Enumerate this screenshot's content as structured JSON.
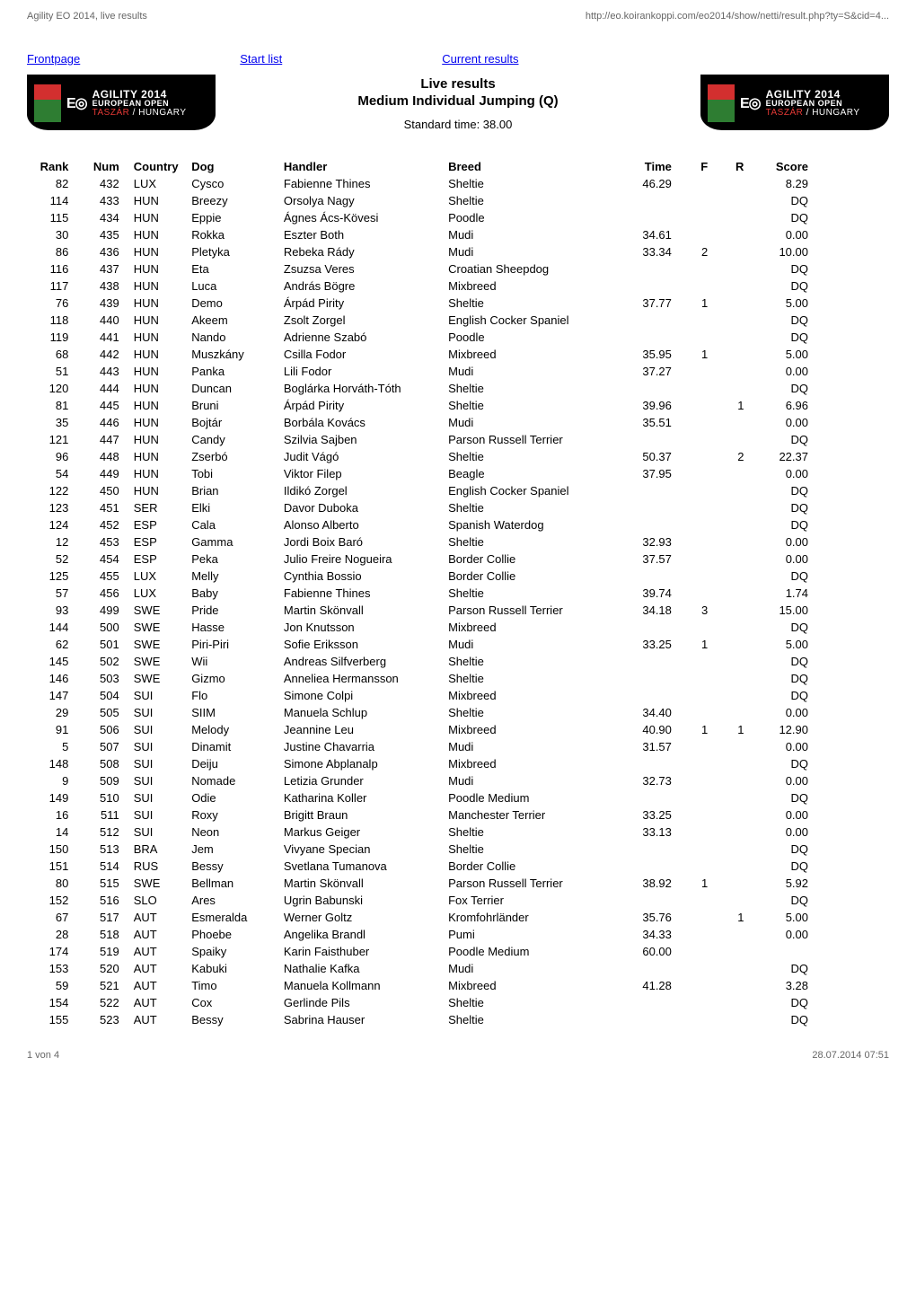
{
  "page_header": {
    "left": "Agility EO 2014, live results",
    "right": "http://eo.koirankoppi.com/eo2014/show/netti/result.php?ty=S&cid=4..."
  },
  "links": {
    "front": "Frontpage",
    "start": "Start list",
    "current": "Current results"
  },
  "logo": {
    "eo": "E",
    "ring": "◎",
    "agility": "AGILITY 2014",
    "euro": "EUROPEAN OPEN",
    "loc_red": "TASZÁR",
    "loc_white": " / HUNGARY"
  },
  "center": {
    "title": "Live results",
    "sub": "Medium Individual Jumping (Q)",
    "std": "Standard time: 38.00"
  },
  "table": {
    "headers": {
      "rank": "Rank",
      "num": "Num",
      "country": "Country",
      "dog": "Dog",
      "handler": "Handler",
      "breed": "Breed",
      "time": "Time",
      "f": "F",
      "r": "R",
      "score": "Score"
    },
    "rows": [
      {
        "rank": "82",
        "num": "432",
        "country": "LUX",
        "dog": "Cysco",
        "handler": "Fabienne Thines",
        "breed": "Sheltie",
        "time": "46.29",
        "f": "",
        "r": "",
        "score": "8.29"
      },
      {
        "rank": "114",
        "num": "433",
        "country": "HUN",
        "dog": "Breezy",
        "handler": "Orsolya Nagy",
        "breed": "Sheltie",
        "time": "",
        "f": "",
        "r": "",
        "score": "DQ"
      },
      {
        "rank": "115",
        "num": "434",
        "country": "HUN",
        "dog": "Eppie",
        "handler": "Ágnes Ács-Kövesi",
        "breed": "Poodle",
        "time": "",
        "f": "",
        "r": "",
        "score": "DQ"
      },
      {
        "rank": "30",
        "num": "435",
        "country": "HUN",
        "dog": "Rokka",
        "handler": "Eszter Both",
        "breed": "Mudi",
        "time": "34.61",
        "f": "",
        "r": "",
        "score": "0.00"
      },
      {
        "rank": "86",
        "num": "436",
        "country": "HUN",
        "dog": "Pletyka",
        "handler": "Rebeka Rády",
        "breed": "Mudi",
        "time": "33.34",
        "f": "2",
        "r": "",
        "score": "10.00"
      },
      {
        "rank": "116",
        "num": "437",
        "country": "HUN",
        "dog": "Eta",
        "handler": "Zsuzsa Veres",
        "breed": "Croatian Sheepdog",
        "time": "",
        "f": "",
        "r": "",
        "score": "DQ"
      },
      {
        "rank": "117",
        "num": "438",
        "country": "HUN",
        "dog": "Luca",
        "handler": "András Bögre",
        "breed": "Mixbreed",
        "time": "",
        "f": "",
        "r": "",
        "score": "DQ"
      },
      {
        "rank": "76",
        "num": "439",
        "country": "HUN",
        "dog": "Demo",
        "handler": "Árpád Pirity",
        "breed": "Sheltie",
        "time": "37.77",
        "f": "1",
        "r": "",
        "score": "5.00"
      },
      {
        "rank": "118",
        "num": "440",
        "country": "HUN",
        "dog": "Akeem",
        "handler": "Zsolt Zorgel",
        "breed": "English Cocker Spaniel",
        "time": "",
        "f": "",
        "r": "",
        "score": "DQ"
      },
      {
        "rank": "119",
        "num": "441",
        "country": "HUN",
        "dog": "Nando",
        "handler": "Adrienne Szabó",
        "breed": "Poodle",
        "time": "",
        "f": "",
        "r": "",
        "score": "DQ"
      },
      {
        "rank": "68",
        "num": "442",
        "country": "HUN",
        "dog": "Muszkány",
        "handler": "Csilla Fodor",
        "breed": "Mixbreed",
        "time": "35.95",
        "f": "1",
        "r": "",
        "score": "5.00"
      },
      {
        "rank": "51",
        "num": "443",
        "country": "HUN",
        "dog": "Panka",
        "handler": "Lili Fodor",
        "breed": "Mudi",
        "time": "37.27",
        "f": "",
        "r": "",
        "score": "0.00"
      },
      {
        "rank": "120",
        "num": "444",
        "country": "HUN",
        "dog": "Duncan",
        "handler": "Boglárka Horváth-Tóth",
        "breed": "Sheltie",
        "time": "",
        "f": "",
        "r": "",
        "score": "DQ"
      },
      {
        "rank": "81",
        "num": "445",
        "country": "HUN",
        "dog": "Bruni",
        "handler": "Árpád Pirity",
        "breed": "Sheltie",
        "time": "39.96",
        "f": "",
        "r": "1",
        "score": "6.96"
      },
      {
        "rank": "35",
        "num": "446",
        "country": "HUN",
        "dog": "Bojtár",
        "handler": "Borbála Kovács",
        "breed": "Mudi",
        "time": "35.51",
        "f": "",
        "r": "",
        "score": "0.00"
      },
      {
        "rank": "121",
        "num": "447",
        "country": "HUN",
        "dog": "Candy",
        "handler": "Szilvia Sajben",
        "breed": "Parson Russell Terrier",
        "time": "",
        "f": "",
        "r": "",
        "score": "DQ"
      },
      {
        "rank": "96",
        "num": "448",
        "country": "HUN",
        "dog": "Zserbó",
        "handler": "Judit Vágó",
        "breed": "Sheltie",
        "time": "50.37",
        "f": "",
        "r": "2",
        "score": "22.37"
      },
      {
        "rank": "54",
        "num": "449",
        "country": "HUN",
        "dog": "Tobi",
        "handler": "Viktor Filep",
        "breed": "Beagle",
        "time": "37.95",
        "f": "",
        "r": "",
        "score": "0.00"
      },
      {
        "rank": "122",
        "num": "450",
        "country": "HUN",
        "dog": "Brian",
        "handler": "Ildikó Zorgel",
        "breed": "English Cocker Spaniel",
        "time": "",
        "f": "",
        "r": "",
        "score": "DQ"
      },
      {
        "rank": "123",
        "num": "451",
        "country": "SER",
        "dog": "Elki",
        "handler": "Davor Duboka",
        "breed": "Sheltie",
        "time": "",
        "f": "",
        "r": "",
        "score": "DQ"
      },
      {
        "rank": "124",
        "num": "452",
        "country": "ESP",
        "dog": "Cala",
        "handler": "Alonso  Alberto",
        "breed": "Spanish Waterdog",
        "time": "",
        "f": "",
        "r": "",
        "score": "DQ"
      },
      {
        "rank": "12",
        "num": "453",
        "country": "ESP",
        "dog": "Gamma",
        "handler": "Jordi Boix Baró",
        "breed": "Sheltie",
        "time": "32.93",
        "f": "",
        "r": "",
        "score": "0.00"
      },
      {
        "rank": "52",
        "num": "454",
        "country": "ESP",
        "dog": "Peka",
        "handler": "Julio Freire Nogueira",
        "breed": "Border Collie",
        "time": "37.57",
        "f": "",
        "r": "",
        "score": "0.00"
      },
      {
        "rank": "125",
        "num": "455",
        "country": "LUX",
        "dog": "Melly",
        "handler": "Cynthia Bossio",
        "breed": "Border Collie",
        "time": "",
        "f": "",
        "r": "",
        "score": "DQ"
      },
      {
        "rank": "57",
        "num": "456",
        "country": "LUX",
        "dog": "Baby",
        "handler": "Fabienne Thines",
        "breed": "Sheltie",
        "time": "39.74",
        "f": "",
        "r": "",
        "score": "1.74"
      },
      {
        "rank": "93",
        "num": "499",
        "country": "SWE",
        "dog": "Pride",
        "handler": "Martin Skönvall",
        "breed": "Parson Russell Terrier",
        "time": "34.18",
        "f": "3",
        "r": "",
        "score": "15.00"
      },
      {
        "rank": "144",
        "num": "500",
        "country": "SWE",
        "dog": "Hasse",
        "handler": "Jon Knutsson",
        "breed": "Mixbreed",
        "time": "",
        "f": "",
        "r": "",
        "score": "DQ"
      },
      {
        "rank": "62",
        "num": "501",
        "country": "SWE",
        "dog": "Piri-Piri",
        "handler": "Sofie Eriksson",
        "breed": "Mudi",
        "time": "33.25",
        "f": "1",
        "r": "",
        "score": "5.00"
      },
      {
        "rank": "145",
        "num": "502",
        "country": "SWE",
        "dog": "Wii",
        "handler": "Andreas Silfverberg",
        "breed": "Sheltie",
        "time": "",
        "f": "",
        "r": "",
        "score": "DQ"
      },
      {
        "rank": "146",
        "num": "503",
        "country": "SWE",
        "dog": "Gizmo",
        "handler": "Anneliea Hermansson",
        "breed": "Sheltie",
        "time": "",
        "f": "",
        "r": "",
        "score": "DQ"
      },
      {
        "rank": "147",
        "num": "504",
        "country": "SUI",
        "dog": "Flo",
        "handler": "Simone Colpi",
        "breed": "Mixbreed",
        "time": "",
        "f": "",
        "r": "",
        "score": "DQ"
      },
      {
        "rank": "29",
        "num": "505",
        "country": "SUI",
        "dog": "SIIM",
        "handler": "Manuela Schlup",
        "breed": "Sheltie",
        "time": "34.40",
        "f": "",
        "r": "",
        "score": "0.00"
      },
      {
        "rank": "91",
        "num": "506",
        "country": "SUI",
        "dog": "Melody",
        "handler": "Jeannine Leu",
        "breed": "Mixbreed",
        "time": "40.90",
        "f": "1",
        "r": "1",
        "score": "12.90"
      },
      {
        "rank": "5",
        "num": "507",
        "country": "SUI",
        "dog": "Dinamit",
        "handler": "Justine Chavarria",
        "breed": "Mudi",
        "time": "31.57",
        "f": "",
        "r": "",
        "score": "0.00"
      },
      {
        "rank": "148",
        "num": "508",
        "country": "SUI",
        "dog": "Deiju",
        "handler": "Simone Abplanalp",
        "breed": "Mixbreed",
        "time": "",
        "f": "",
        "r": "",
        "score": "DQ"
      },
      {
        "rank": "9",
        "num": "509",
        "country": "SUI",
        "dog": "Nomade",
        "handler": "Letizia Grunder",
        "breed": "Mudi",
        "time": "32.73",
        "f": "",
        "r": "",
        "score": "0.00"
      },
      {
        "rank": "149",
        "num": "510",
        "country": "SUI",
        "dog": "Odie",
        "handler": "Katharina Koller",
        "breed": "Poodle Medium",
        "time": "",
        "f": "",
        "r": "",
        "score": "DQ"
      },
      {
        "rank": "16",
        "num": "511",
        "country": "SUI",
        "dog": "Roxy",
        "handler": "Brigitt Braun",
        "breed": "Manchester Terrier",
        "time": "33.25",
        "f": "",
        "r": "",
        "score": "0.00"
      },
      {
        "rank": "14",
        "num": "512",
        "country": "SUI",
        "dog": "Neon",
        "handler": "Markus Geiger",
        "breed": "Sheltie",
        "time": "33.13",
        "f": "",
        "r": "",
        "score": "0.00"
      },
      {
        "rank": "150",
        "num": "513",
        "country": "BRA",
        "dog": "Jem",
        "handler": "Vivyane Specian",
        "breed": "Sheltie",
        "time": "",
        "f": "",
        "r": "",
        "score": "DQ"
      },
      {
        "rank": "151",
        "num": "514",
        "country": "RUS",
        "dog": "Bessy",
        "handler": "Svetlana Tumanova",
        "breed": "Border Collie",
        "time": "",
        "f": "",
        "r": "",
        "score": "DQ"
      },
      {
        "rank": "80",
        "num": "515",
        "country": "SWE",
        "dog": "Bellman",
        "handler": "Martin Skönvall",
        "breed": "Parson Russell Terrier",
        "time": "38.92",
        "f": "1",
        "r": "",
        "score": "5.92"
      },
      {
        "rank": "152",
        "num": "516",
        "country": "SLO",
        "dog": "Ares",
        "handler": "Ugrin Babunski",
        "breed": "Fox Terrier",
        "time": "",
        "f": "",
        "r": "",
        "score": "DQ"
      },
      {
        "rank": "67",
        "num": "517",
        "country": "AUT",
        "dog": "Esmeralda",
        "handler": "Werner Goltz",
        "breed": "Kromfohrländer",
        "time": "35.76",
        "f": "",
        "r": "1",
        "score": "5.00"
      },
      {
        "rank": "28",
        "num": "518",
        "country": "AUT",
        "dog": "Phoebe",
        "handler": "Angelika Brandl",
        "breed": "Pumi",
        "time": "34.33",
        "f": "",
        "r": "",
        "score": "0.00"
      },
      {
        "rank": "174",
        "num": "519",
        "country": "AUT",
        "dog": "Spaiky",
        "handler": "Karin Faisthuber",
        "breed": "Poodle Medium",
        "time": "60.00",
        "f": "",
        "r": "",
        "score": ""
      },
      {
        "rank": "153",
        "num": "520",
        "country": "AUT",
        "dog": "Kabuki",
        "handler": "Nathalie Kafka",
        "breed": "Mudi",
        "time": "",
        "f": "",
        "r": "",
        "score": "DQ"
      },
      {
        "rank": "59",
        "num": "521",
        "country": "AUT",
        "dog": "Timo",
        "handler": "Manuela Kollmann",
        "breed": "Mixbreed",
        "time": "41.28",
        "f": "",
        "r": "",
        "score": "3.28"
      },
      {
        "rank": "154",
        "num": "522",
        "country": "AUT",
        "dog": "Cox",
        "handler": "Gerlinde Pils",
        "breed": "Sheltie",
        "time": "",
        "f": "",
        "r": "",
        "score": "DQ"
      },
      {
        "rank": "155",
        "num": "523",
        "country": "AUT",
        "dog": "Bessy",
        "handler": "Sabrina Hauser",
        "breed": "Sheltie",
        "time": "",
        "f": "",
        "r": "",
        "score": "DQ"
      }
    ]
  },
  "footer": {
    "left": "1 von 4",
    "right": "28.07.2014 07:51"
  }
}
